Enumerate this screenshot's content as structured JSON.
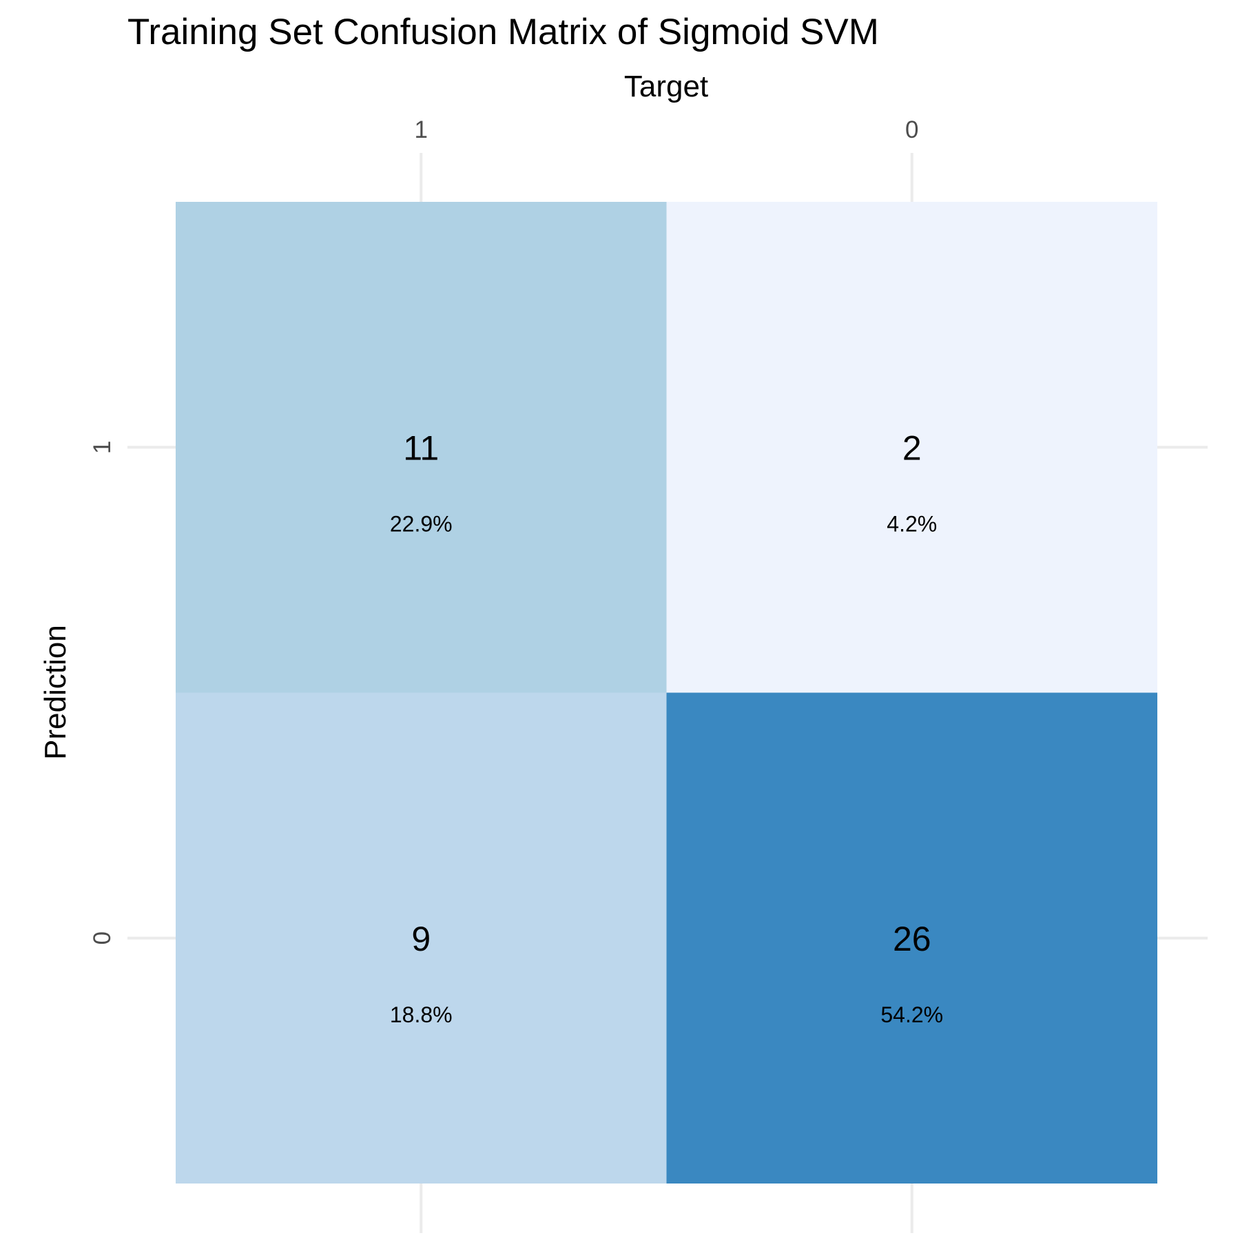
{
  "chart_data": {
    "type": "heatmap",
    "title": "Training Set Confusion Matrix of Sigmoid SVM",
    "xlabel": "Target",
    "ylabel": "Prediction",
    "x_categories": [
      "1",
      "0"
    ],
    "y_categories": [
      "1",
      "0"
    ],
    "cells": [
      {
        "target": "1",
        "prediction": "1",
        "count": 11,
        "percent": "22.9%",
        "color": "#afd1e4"
      },
      {
        "target": "0",
        "prediction": "1",
        "count": 2,
        "percent": "4.2%",
        "color": "#eef3fd"
      },
      {
        "target": "1",
        "prediction": "0",
        "count": 9,
        "percent": "18.8%",
        "color": "#bdd7ec"
      },
      {
        "target": "0",
        "prediction": "0",
        "count": 26,
        "percent": "54.2%",
        "color": "#3a88c1"
      }
    ],
    "grid": true,
    "legend": "none",
    "x_axis_position": "top"
  }
}
